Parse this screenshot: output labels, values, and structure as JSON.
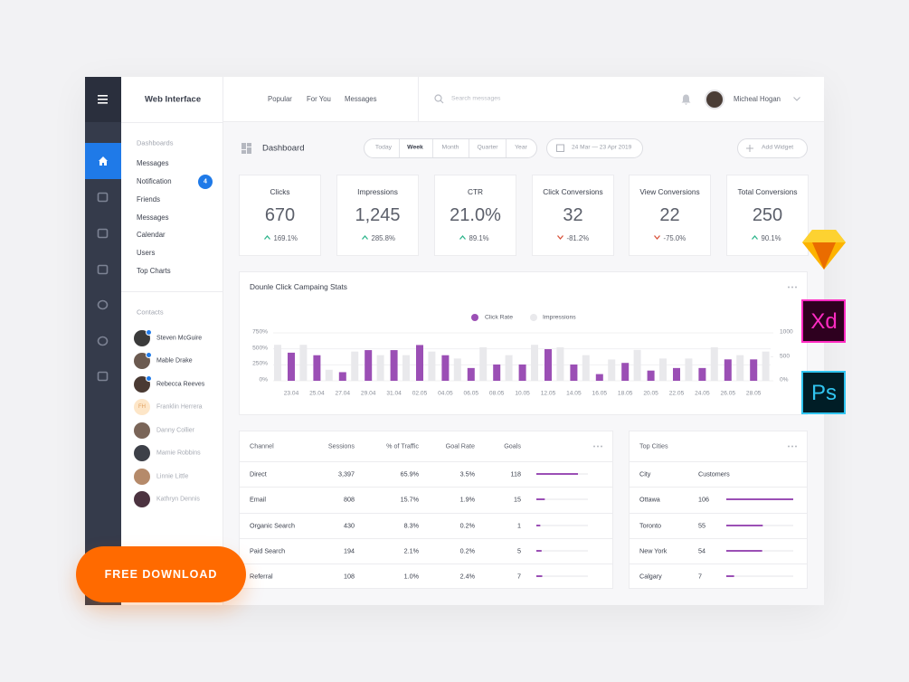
{
  "app": {
    "brand": "Web Interface",
    "top_nav": [
      "Popular",
      "For You",
      "Messages"
    ],
    "search_placeholder": "Search messages",
    "user": "Micheal Hogan"
  },
  "sidebar": {
    "section": "Dashboards",
    "items": [
      "Messages",
      "Notification",
      "Friends",
      "Messages",
      "Calendar",
      "Users",
      "Top Charts"
    ],
    "notification_badge": "4",
    "contacts_title": "Contacts",
    "contacts": [
      {
        "name": "Steven McGuire",
        "active": true
      },
      {
        "name": "Mable Drake",
        "active": true
      },
      {
        "name": "Rebecca Reeves",
        "active": true
      },
      {
        "name": "Franklin Herrera",
        "initials": "FH",
        "active": false
      },
      {
        "name": "Danny Collier",
        "active": false
      },
      {
        "name": "Mamie Robbins",
        "active": false
      },
      {
        "name": "Linnie Little",
        "active": false
      },
      {
        "name": "Kathryn Dennis",
        "active": false
      }
    ]
  },
  "dashboard": {
    "title": "Dashboard",
    "periods": [
      "Today",
      "Week",
      "Month",
      "Quarter",
      "Year"
    ],
    "active_period": 1,
    "date_range": "24 Mar — 23 Apr 2019",
    "add_widget": "Add Widget"
  },
  "kpis": [
    {
      "label": "Clicks",
      "value": "670",
      "change": "169.1%",
      "trend": "up"
    },
    {
      "label": "Impressions",
      "value": "1,245",
      "change": "285.8%",
      "trend": "up"
    },
    {
      "label": "CTR",
      "value": "21.0%",
      "change": "89.1%",
      "trend": "up"
    },
    {
      "label": "Click Conversions",
      "value": "32",
      "change": "-81.2%",
      "trend": "down"
    },
    {
      "label": "View Conversions",
      "value": "22",
      "change": "-75.0%",
      "trend": "down"
    },
    {
      "label": "Total Conversions",
      "value": "250",
      "change": "90.1%",
      "trend": "up"
    }
  ],
  "chart_data": {
    "type": "bar",
    "title": "Dounle Click Campaing Stats",
    "categories": [
      "23.04",
      "25.04",
      "27.04",
      "29.04",
      "31.04",
      "02.05",
      "04.05",
      "06.05",
      "08.05",
      "10.05",
      "12.05",
      "14.05",
      "16.05",
      "18.05",
      "20.05",
      "22.05",
      "24.05",
      "26.05",
      "28.05",
      null
    ],
    "series": [
      {
        "name": "Click Rate",
        "color": "#9b4fb5",
        "values": [
          440,
          400,
          135,
          480,
          480,
          560,
          400,
          200,
          255,
          255,
          495,
          255,
          105,
          280,
          160,
          200,
          200,
          335,
          335,
          null
        ]
      },
      {
        "name": "Impressions",
        "color": "#e9e9ec",
        "axis": "y2",
        "values": [
          750,
          750,
          230,
          610,
          535,
          535,
          610,
          465,
          700,
          535,
          750,
          700,
          535,
          445,
          645,
          465,
          465,
          700,
          535,
          610
        ]
      }
    ],
    "ylim": [
      0,
      750
    ],
    "yticks": [
      {
        "value": 0,
        "label": "0%"
      },
      {
        "value": 250,
        "label": "250%"
      },
      {
        "value": 500,
        "label": "500%"
      },
      {
        "value": 750,
        "label": "750%"
      }
    ],
    "y2lim": [
      0,
      1000
    ],
    "y2ticks": [
      {
        "value": 0,
        "label": "0%"
      },
      500,
      1000
    ],
    "grid": true
  },
  "channels": {
    "columns": [
      "Channel",
      "Sessions",
      "% of Traffic",
      "Goal Rate",
      "Goals"
    ],
    "rows": [
      [
        "Direct",
        "3,397",
        "65.9%",
        "3.5%",
        118
      ],
      [
        "Email",
        "808",
        "15.7%",
        "1.9%",
        15
      ],
      [
        "Organic Search",
        "430",
        "8.3%",
        "0.2%",
        1
      ],
      [
        "Paid Search",
        "194",
        "2.1%",
        "0.2%",
        5
      ],
      [
        "Referral",
        "108",
        "1.0%",
        "2.4%",
        7
      ]
    ]
  },
  "cities": {
    "title": "Top Cities",
    "columns": [
      "City",
      "Customers"
    ],
    "rows": [
      [
        "Ottawa",
        106
      ],
      [
        "Toronto",
        55
      ],
      [
        "New York",
        54
      ],
      [
        "Calgary",
        7
      ]
    ]
  },
  "promo": {
    "button": "FREE DOWNLOAD",
    "apps": [
      "Xd",
      "Ps"
    ]
  }
}
